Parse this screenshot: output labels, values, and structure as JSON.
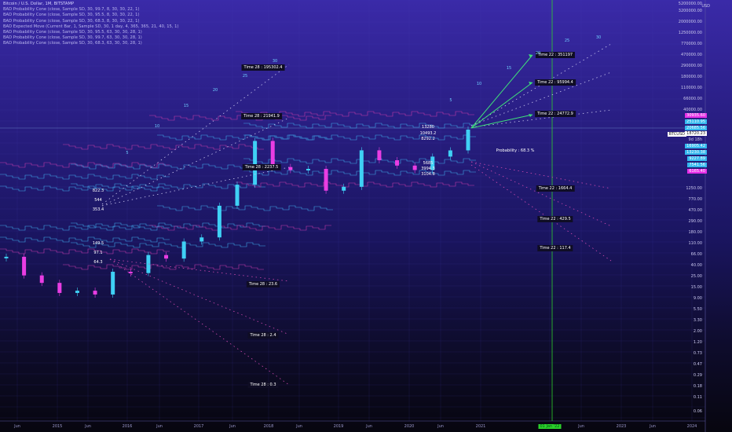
{
  "legend": {
    "title": "Bitcoin / U.S. Dollar, 1M, BITSTAMP",
    "lines": [
      "BAD Probability Cone (close, Sample SD, 30, 99.7, 8, 30, 30, 22, 1)",
      "BAD Probability Cone (close, Sample SD, 30, 95.5, 8, 30, 30, 22, 1)",
      "BAD Probability Cone (close, Sample SD, 30, 68.3, 8, 30, 30, 22, 1)",
      "BAD Expected Move (Current Bar, 1, Sample SD, 30, 1 day, 4, 365, 365, 21, 40, 15, 1)",
      "BAD Probability Cone (close, Sample SD, 30, 95.5, 63, 30, 30, 28, 1)",
      "BAD Probability Cone (close, Sample SD, 30, 99.7, 63, 30, 30, 28, 1)",
      "BAD Probability Cone (close, Sample SD, 30, 68.3, 63, 30, 30, 28, 1)"
    ]
  },
  "axis": {
    "currency": "USD",
    "price_ticks": [
      "5200000.00",
      "3200000.00",
      "2000000.00",
      "1250000.00",
      "770000.00",
      "470000.00",
      "290000.00",
      "180000.00",
      "110000.00",
      "66000.00",
      "40000.00",
      "1250.00",
      "770.00",
      "470.00",
      "290.00",
      "180.00",
      "110.00",
      "66.00",
      "40.00",
      "25.00",
      "15.00",
      "9.00",
      "5.50",
      "3.30",
      "2.00",
      "1.20",
      "0.73",
      "0.47",
      "0.29",
      "0.18",
      "0.11",
      "0.06"
    ],
    "price_tags": [
      {
        "text": "30935.60",
        "color": "#e62fe6"
      },
      {
        "text": "25110.95",
        "color": "#34b8ee"
      },
      {
        "text": "20685.56",
        "color": "#34b8ee"
      },
      {
        "text": "18720.23",
        "color": "#ffffff"
      },
      {
        "text": "16905.42",
        "color": "#34b8ee"
      },
      {
        "text": "13230.38",
        "color": "#34b8ee"
      },
      {
        "text": "9227.89",
        "color": "#34b8ee"
      },
      {
        "text": "7541.56",
        "color": "#34b8ee"
      },
      {
        "text": "6165.40",
        "color": "#e62fe6"
      }
    ],
    "symbol_tag": "BTCUSD",
    "countdown": "9d 18h",
    "time_ticks": [
      "Jun",
      "2015",
      "Jun",
      "2016",
      "Jun",
      "2017",
      "Jun",
      "2018",
      "Jun",
      "2019",
      "Jun",
      "2020",
      "Jun",
      "2021",
      "01 Jan '22",
      "Jun",
      "2023",
      "Jun",
      "2024"
    ],
    "highlight_tick": "01 Jan '22"
  },
  "annotations": {
    "time22": [
      "Time 22 : 351197",
      "Time 22 : 95994.4",
      "Time 22 : 24772.9",
      "Time 22 : 1664.4",
      "Time 22 : 429.5",
      "Time 22 : 117.4"
    ],
    "time28": [
      "Time 28 : 195302.4",
      "Time 28 : 21941.9",
      "Time 28 : 2237.5",
      "Time 28 : 23.6",
      "Time 28 : 2.4",
      "Time 28 : 0.3"
    ],
    "probability": "Probability : 68.3 %",
    "left_levels": [
      "822.3",
      "544",
      "353.4",
      "149.5",
      "97.1",
      "64.3"
    ],
    "mid_levels": [
      "13280",
      "10493.2",
      "8292.2",
      "5685",
      "3994.3",
      "3104.8"
    ],
    "step_labels": [
      "5",
      "10",
      "15",
      "20",
      "25",
      "30"
    ]
  },
  "chart_data": {
    "type": "candlestick",
    "title": "Bitcoin / U.S. Dollar, 1M, BITSTAMP",
    "scale": "log",
    "ylim": [
      0.06,
      5200000
    ],
    "x_range": [
      "2014-06",
      "2024-04"
    ],
    "series": [
      {
        "name": "BTCUSD monthly close",
        "x": [
          "2014-06",
          "2014-09",
          "2014-12",
          "2015-03",
          "2015-06",
          "2015-09",
          "2015-12",
          "2016-03",
          "2016-06",
          "2016-09",
          "2016-12",
          "2017-03",
          "2017-06",
          "2017-09",
          "2017-12",
          "2018-03",
          "2018-06",
          "2018-09",
          "2018-12",
          "2019-03",
          "2019-06",
          "2019-09",
          "2019-12",
          "2020-03",
          "2020-06",
          "2020-09",
          "2020-11"
        ],
        "values": [
          640,
          390,
          320,
          245,
          260,
          235,
          430,
          415,
          670,
          610,
          960,
          1070,
          2480,
          4340,
          13850,
          6930,
          6400,
          6600,
          3700,
          4100,
          10800,
          8300,
          7200,
          6400,
          9140,
          10780,
          18720
        ]
      }
    ],
    "cone_targets_time22": [
      351197,
      95994.4,
      24772.9,
      1664.4,
      429.5,
      117.4
    ],
    "cone_targets_time28": [
      195302.4,
      21941.9,
      2237.5,
      23.6,
      2.4,
      0.3
    ],
    "probability": "68.3 %",
    "current_price": 18720.23
  }
}
